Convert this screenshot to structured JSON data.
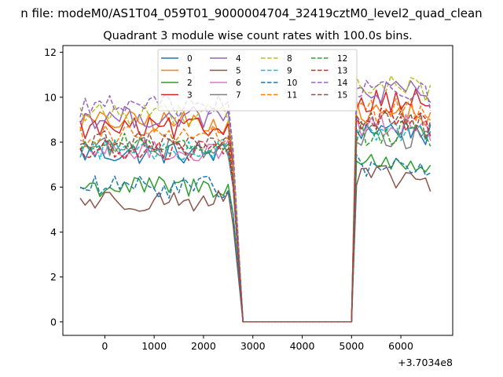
{
  "chart_data": {
    "type": "line",
    "suptitle": "n file: modeM0/AS1T04_059T01_9000004704_32419cztM0_level2_quad_clean",
    "title": "Quadrant 3 module wise count rates with 100.0s bins.",
    "xlabel": "",
    "ylabel": "",
    "x_offset_label": "+3.7034e8",
    "xlim": [
      -850,
      7050
    ],
    "ylim": [
      -0.6,
      12.3
    ],
    "x_ticks": [
      0,
      1000,
      2000,
      3000,
      4000,
      5000,
      6000
    ],
    "y_ticks": [
      0,
      2,
      4,
      6,
      8,
      10,
      12
    ],
    "x_tick_labels": [
      "0",
      "1000",
      "2000",
      "3000",
      "4000",
      "5000",
      "6000"
    ],
    "y_tick_labels": [
      "0",
      "2",
      "4",
      "6",
      "8",
      "10",
      "12"
    ],
    "grid": false,
    "legend_placement": "top-center",
    "legend_columns": 4,
    "gap": {
      "drop_start": 2550,
      "zero_start": 2800,
      "zero_end": 5000,
      "rise_end": 5050
    },
    "x_start": -500,
    "x_end": 6650,
    "x_step": 100,
    "series": [
      {
        "name": "0",
        "color": "#1f77b4",
        "dash": "solid",
        "before": 7.5,
        "after": 8.6,
        "end": 3.0
      },
      {
        "name": "1",
        "color": "#ff7f0e",
        "dash": "solid",
        "before": 8.9,
        "after": 9.3,
        "end": 3.2
      },
      {
        "name": "2",
        "color": "#2ca02c",
        "dash": "solid",
        "before": 6.0,
        "after": 7.1,
        "end": 3.4
      },
      {
        "name": "3",
        "color": "#d62728",
        "dash": "solid",
        "before": 8.6,
        "after": 9.9,
        "end": 3.6
      },
      {
        "name": "4",
        "color": "#9467bd",
        "dash": "solid",
        "before": 9.1,
        "after": 10.2,
        "end": 4.2
      },
      {
        "name": "5",
        "color": "#8c564b",
        "dash": "solid",
        "before": 5.4,
        "after": 6.4,
        "end": 2.8
      },
      {
        "name": "6",
        "color": "#e377c2",
        "dash": "solid",
        "before": 7.6,
        "after": 8.8,
        "end": 3.5
      },
      {
        "name": "7",
        "color": "#7f7f7f",
        "dash": "solid",
        "before": 7.8,
        "after": 8.2,
        "end": 3.1
      },
      {
        "name": "8",
        "color": "#bcbd22",
        "dash": "dashed",
        "before": 9.3,
        "after": 10.5,
        "end": 4.6
      },
      {
        "name": "9",
        "color": "#17becf",
        "dash": "dashed",
        "before": 7.7,
        "after": 8.6,
        "end": 3.8
      },
      {
        "name": "10",
        "color": "#1f77b4",
        "dash": "dashed",
        "before": 6.0,
        "after": 6.9,
        "end": 3.0
      },
      {
        "name": "11",
        "color": "#ff7f0e",
        "dash": "dashed",
        "before": 8.3,
        "after": 9.4,
        "end": 4.0
      },
      {
        "name": "12",
        "color": "#2ca02c",
        "dash": "dashed",
        "before": 7.9,
        "after": 8.4,
        "end": 3.6
      },
      {
        "name": "13",
        "color": "#d62728",
        "dash": "dashed",
        "before": 7.6,
        "after": 9.0,
        "end": 3.9
      },
      {
        "name": "14",
        "color": "#9467bd",
        "dash": "dashed",
        "before": 9.6,
        "after": 10.3,
        "end": 4.4
      },
      {
        "name": "15",
        "color": "#8c564b",
        "dash": "dashed",
        "before": 8.0,
        "after": 8.9,
        "end": 4.1
      }
    ]
  }
}
